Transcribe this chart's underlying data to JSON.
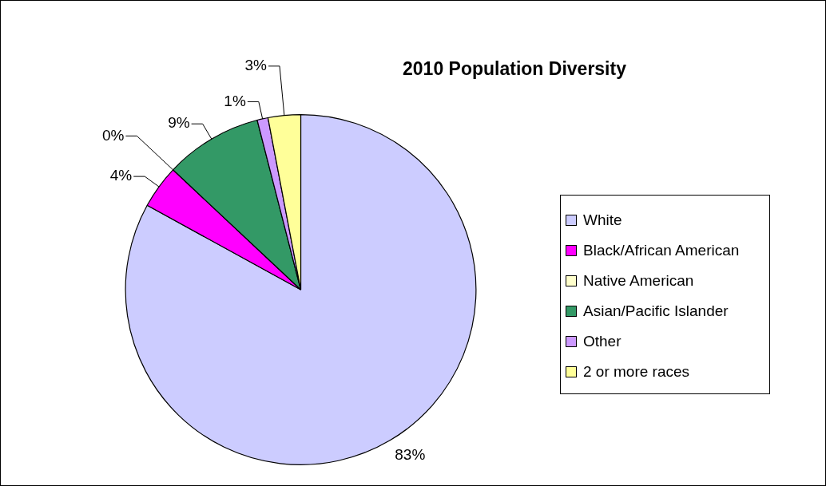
{
  "chart_data": {
    "type": "pie",
    "title": "2010 Population Diversity",
    "categories": [
      "White",
      "Black/African American",
      "Native American",
      "Asian/Pacific Islander",
      "Other",
      "2 or more races"
    ],
    "values": [
      83,
      4,
      0,
      9,
      1,
      3
    ],
    "colors": [
      "#ccccff",
      "#ff00ff",
      "#ffffcc",
      "#339966",
      "#cc99ff",
      "#ffff99"
    ],
    "value_labels": [
      "83%",
      "4%",
      "0%",
      "9%",
      "1%",
      "3%"
    ],
    "legend": "right"
  }
}
